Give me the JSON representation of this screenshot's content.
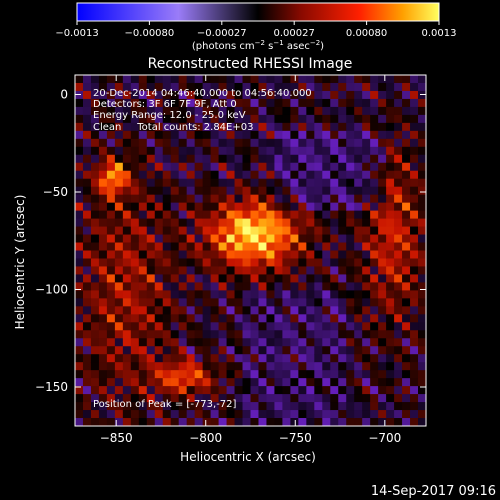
{
  "chart_data": {
    "type": "heatmap",
    "title": "Reconstructed RHESSI Image",
    "xlabel": "Heliocentric X (arcsec)",
    "ylabel": "Heliocentric Y (arcsec)",
    "xlim": [
      -873,
      -677
    ],
    "ylim": [
      -170,
      10
    ],
    "xticks": [
      {
        "v": -850,
        "label": "−850"
      },
      {
        "v": -800,
        "label": "−800"
      },
      {
        "v": -750,
        "label": "−750"
      },
      {
        "v": -700,
        "label": "−700"
      }
    ],
    "yticks": [
      {
        "v": 0,
        "label": "0"
      },
      {
        "v": -50,
        "label": "−50"
      },
      {
        "v": -100,
        "label": "−100"
      },
      {
        "v": -150,
        "label": "−150"
      }
    ],
    "info_lines": [
      "20-Dec-2014 04:46:40.000 to 04:56:40.000",
      "Detectors: 3F 6F 7F 9F, Att 0",
      "Energy Range: 12.0 - 25.0 keV",
      "Clean     Total counts: 2.84E+03"
    ],
    "peak_text": "Position of Peak = [-773,-72]",
    "peak": {
      "x": -773,
      "y": -72
    },
    "sources": [
      {
        "x": -773,
        "y": -72,
        "amp": 1.0,
        "sx": 18,
        "sy": 12
      },
      {
        "x": -852,
        "y": -43,
        "amp": 0.75,
        "sx": 6,
        "sy": 6
      },
      {
        "x": -812,
        "y": -145,
        "amp": 0.6,
        "sx": 12,
        "sy": 6
      },
      {
        "x": -695,
        "y": -72,
        "amp": 0.45,
        "sx": 12,
        "sy": 30
      },
      {
        "x": -845,
        "y": -100,
        "amp": 0.35,
        "sx": 18,
        "sy": 40
      }
    ],
    "colorbar": {
      "ticks": [
        "−0.0013",
        "−0.00080",
        "−0.00027",
        "0.00027",
        "0.00080",
        "0.0013"
      ],
      "units": "(photons cm",
      "units_sup1": "−2",
      "units_mid": " s",
      "units_sup2": "−1",
      "units_mid2": " asec",
      "units_sup3": "−2",
      "units_end": ")"
    }
  },
  "footer_date": "14-Sep-2017 09:16"
}
